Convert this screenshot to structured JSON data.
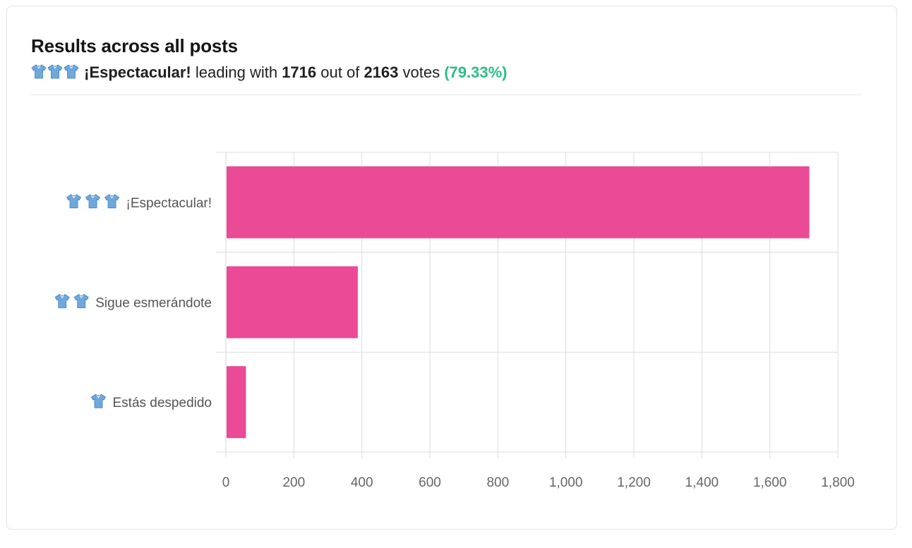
{
  "header": {
    "title": "Results across all posts",
    "leader_icons": [
      "shirt-icon",
      "shirt-icon",
      "shirt-icon"
    ],
    "leader_label": "¡Espectacular!",
    "text_leading": "leading with",
    "leader_votes": "1716",
    "text_outof": "out of",
    "total_votes": "2163",
    "text_votes": "votes",
    "leader_pct": "(79.33%)"
  },
  "colors": {
    "bar": "#ea4a96",
    "shirt": "#6fa8dc",
    "percent": "#2dbd86"
  },
  "chart_data": {
    "type": "bar",
    "orientation": "horizontal",
    "categories": [
      "¡Espectacular!",
      "Sigue esmerándote",
      "Estás despedido"
    ],
    "category_icons": [
      3,
      2,
      1
    ],
    "values": [
      1716,
      388,
      59
    ],
    "xlim": [
      0,
      1800
    ],
    "x_ticks": [
      "0",
      "200",
      "400",
      "600",
      "800",
      "1,000",
      "1,200",
      "1,400",
      "1,600",
      "1,800"
    ],
    "grid": true,
    "title": "",
    "xlabel": "",
    "ylabel": ""
  }
}
